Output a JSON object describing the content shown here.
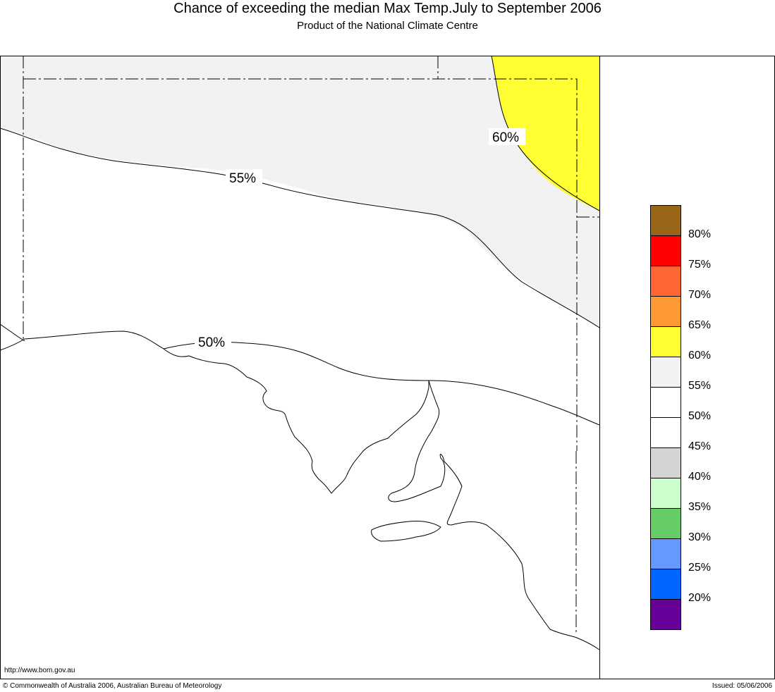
{
  "header": {
    "title": "Chance of exceeding the median Max Temp.July to September 2006",
    "subtitle": "Product of the National Climate Centre"
  },
  "map": {
    "contour_labels": [
      "60%",
      "55%",
      "50%"
    ],
    "colors": {
      "zone_55_60": "#f2f2f2",
      "zone_60_65": "#ffff33",
      "zone_50_55": "#ffffff"
    }
  },
  "legend": {
    "colors": [
      "#996619",
      "#ff0000",
      "#ff6633",
      "#ff9933",
      "#ffff33",
      "#f2f2f2",
      "#ffffff",
      "#ffffff",
      "#d4d4d4",
      "#ccffcc",
      "#66cc66",
      "#6699ff",
      "#0066ff",
      "#660099"
    ],
    "labels": [
      "80%",
      "75%",
      "70%",
      "65%",
      "60%",
      "55%",
      "50%",
      "45%",
      "40%",
      "35%",
      "30%",
      "25%",
      "20%"
    ]
  },
  "footer": {
    "url": "http://www.bom.gov.au",
    "copyright": "© Commonwealth of Australia 2006, Australian Bureau of Meteorology",
    "issued": "Issued: 05/06/2006"
  }
}
